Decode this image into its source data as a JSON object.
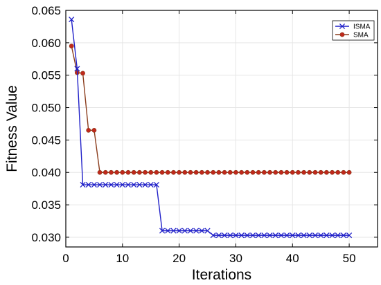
{
  "chart_data": {
    "type": "line",
    "xlabel": "Iterations",
    "ylabel": "Fitness Value",
    "xlim": [
      0,
      55
    ],
    "ylim": [
      0.0285,
      0.065
    ],
    "xticks": [
      0,
      10,
      20,
      30,
      40,
      50
    ],
    "yticks": [
      0.03,
      0.035,
      0.04,
      0.045,
      0.05,
      0.055,
      0.06,
      0.065
    ],
    "ytick_labels": [
      "0.030",
      "0.035",
      "0.040",
      "0.045",
      "0.050",
      "0.055",
      "0.060",
      "0.065"
    ],
    "grid": true,
    "legend_position": "top-right",
    "x": [
      1,
      2,
      3,
      4,
      5,
      6,
      7,
      8,
      9,
      10,
      11,
      12,
      13,
      14,
      15,
      16,
      17,
      18,
      19,
      20,
      21,
      22,
      23,
      24,
      25,
      26,
      27,
      28,
      29,
      30,
      31,
      32,
      33,
      34,
      35,
      36,
      37,
      38,
      39,
      40,
      41,
      42,
      43,
      44,
      45,
      46,
      47,
      48,
      49,
      50
    ],
    "series": [
      {
        "name": "ISMA",
        "color": "#1f1fc8",
        "marker": "x",
        "values": [
          0.0636,
          0.056,
          0.0381,
          0.0381,
          0.0381,
          0.0381,
          0.0381,
          0.0381,
          0.0381,
          0.0381,
          0.0381,
          0.0381,
          0.0381,
          0.0381,
          0.0381,
          0.0381,
          0.031,
          0.031,
          0.031,
          0.031,
          0.031,
          0.031,
          0.031,
          0.031,
          0.031,
          0.0303,
          0.0303,
          0.0303,
          0.0303,
          0.0303,
          0.0303,
          0.0303,
          0.0303,
          0.0303,
          0.0303,
          0.0303,
          0.0303,
          0.0303,
          0.0303,
          0.0303,
          0.0303,
          0.0303,
          0.0303,
          0.0303,
          0.0303,
          0.0303,
          0.0303,
          0.0303,
          0.0303,
          0.0303
        ]
      },
      {
        "name": "SMA",
        "color": "#c0281c",
        "line_color": "#8a3c1c",
        "marker": "o",
        "values": [
          0.0595,
          0.0554,
          0.0553,
          0.0465,
          0.0465,
          0.04,
          0.04,
          0.04,
          0.04,
          0.04,
          0.04,
          0.04,
          0.04,
          0.04,
          0.04,
          0.04,
          0.04,
          0.04,
          0.04,
          0.04,
          0.04,
          0.04,
          0.04,
          0.04,
          0.04,
          0.04,
          0.04,
          0.04,
          0.04,
          0.04,
          0.04,
          0.04,
          0.04,
          0.04,
          0.04,
          0.04,
          0.04,
          0.04,
          0.04,
          0.04,
          0.04,
          0.04,
          0.04,
          0.04,
          0.04,
          0.04,
          0.04,
          0.04,
          0.04,
          0.04
        ]
      }
    ]
  }
}
